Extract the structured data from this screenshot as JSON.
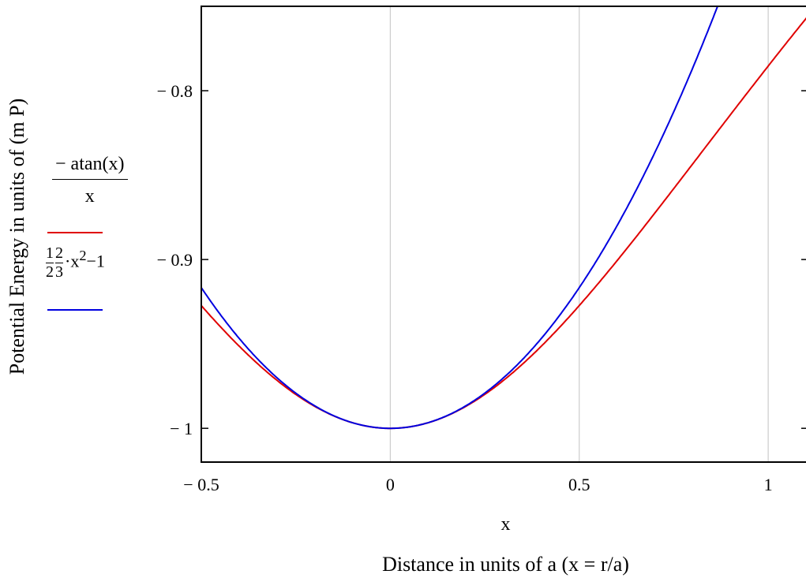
{
  "chart_data": {
    "type": "line",
    "title": "",
    "xlabel": "x",
    "xlabel_secondary": "Distance in units of a (x = r/a)",
    "ylabel": "Potential Energy in units of (m P)",
    "xlim": [
      -0.5,
      1.1
    ],
    "ylim": [
      -1.02,
      -0.75
    ],
    "x_ticks": [
      -0.5,
      0,
      0.5,
      1
    ],
    "x_tick_labels": [
      "− 0.5",
      "0",
      "0.5",
      "1"
    ],
    "y_ticks": [
      -0.8,
      -0.9,
      -1
    ],
    "y_tick_labels": [
      "− 0.8",
      "− 0.9",
      "− 1"
    ],
    "grid": "vertical",
    "legend_position": "left",
    "series": [
      {
        "legend": {
          "numerator": "− atan(x)",
          "denominator": "x"
        },
        "color": "#e00000",
        "expression": "-atan(x)/x",
        "x": [
          -0.5,
          -0.4,
          -0.3,
          -0.2,
          -0.1,
          0,
          0.1,
          0.2,
          0.3,
          0.4,
          0.5,
          0.6,
          0.7,
          0.8,
          0.9,
          1.0,
          1.1
        ],
        "y": [
          -0.927,
          -0.951,
          -0.971,
          -0.987,
          -0.997,
          -1.0,
          -0.997,
          -0.987,
          -0.971,
          -0.951,
          -0.927,
          -0.901,
          -0.872,
          -0.842,
          -0.811,
          -0.785,
          -0.754
        ]
      },
      {
        "legend": {
          "f1_num": "1",
          "f1_den": "2",
          "f2_num": "2",
          "f2_den": "3",
          "term": "·x",
          "exp": "2",
          "rest": "−1"
        },
        "color": "#0000e0",
        "expression": "(1/2)(2/3)x^2 - 1",
        "x": [
          -0.5,
          -0.4,
          -0.3,
          -0.2,
          -0.1,
          0,
          0.1,
          0.2,
          0.3,
          0.4,
          0.5,
          0.6,
          0.7,
          0.8,
          0.85
        ],
        "y": [
          -0.917,
          -0.947,
          -0.97,
          -0.987,
          -0.997,
          -1.0,
          -0.997,
          -0.987,
          -0.97,
          -0.947,
          -0.917,
          -0.88,
          -0.837,
          -0.787,
          -0.759
        ]
      }
    ]
  }
}
